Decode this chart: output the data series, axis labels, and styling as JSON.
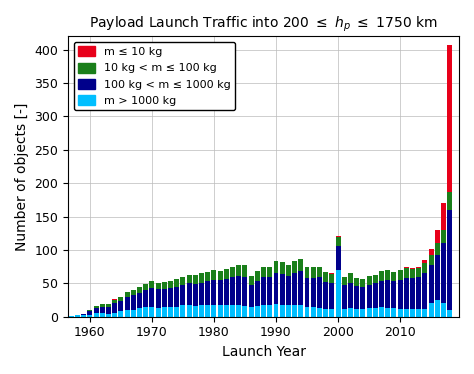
{
  "title": "Payload Launch Traffic into 200 $\\leq$ $h_p$ $\\leq$ 1750 km",
  "xlabel": "Launch Year",
  "ylabel": "Number of objects [-]",
  "years": [
    1957,
    1958,
    1959,
    1960,
    1961,
    1962,
    1963,
    1964,
    1965,
    1966,
    1967,
    1968,
    1969,
    1970,
    1971,
    1972,
    1973,
    1974,
    1975,
    1976,
    1977,
    1978,
    1979,
    1980,
    1981,
    1982,
    1983,
    1984,
    1985,
    1986,
    1987,
    1988,
    1989,
    1990,
    1991,
    1992,
    1993,
    1994,
    1995,
    1996,
    1997,
    1998,
    1999,
    2000,
    2001,
    2002,
    2003,
    2004,
    2005,
    2006,
    2007,
    2008,
    2009,
    2010,
    2011,
    2012,
    2013,
    2014,
    2015,
    2016,
    2017,
    2018
  ],
  "m_le_10": [
    0,
    0,
    0,
    0,
    0,
    0,
    0,
    1,
    0,
    0,
    0,
    0,
    0,
    0,
    0,
    0,
    0,
    0,
    0,
    0,
    0,
    0,
    0,
    0,
    0,
    0,
    0,
    0,
    0,
    0,
    0,
    0,
    0,
    0,
    0,
    0,
    0,
    0,
    0,
    0,
    0,
    0,
    1,
    1,
    0,
    0,
    0,
    0,
    0,
    0,
    0,
    0,
    0,
    0,
    1,
    1,
    2,
    5,
    10,
    20,
    40,
    220
  ],
  "m_10_100": [
    0,
    0,
    0,
    2,
    3,
    4,
    5,
    5,
    6,
    7,
    8,
    9,
    9,
    10,
    10,
    10,
    11,
    12,
    12,
    13,
    13,
    14,
    14,
    15,
    14,
    15,
    16,
    17,
    18,
    13,
    15,
    16,
    16,
    18,
    18,
    17,
    18,
    18,
    16,
    16,
    16,
    15,
    14,
    14,
    13,
    14,
    12,
    12,
    13,
    13,
    14,
    15,
    14,
    15,
    15,
    14,
    13,
    14,
    14,
    17,
    20,
    27
  ],
  "m_100_1000": [
    0,
    1,
    2,
    5,
    8,
    10,
    10,
    14,
    16,
    20,
    22,
    23,
    26,
    28,
    28,
    27,
    29,
    29,
    30,
    33,
    33,
    34,
    36,
    38,
    38,
    40,
    42,
    44,
    44,
    34,
    38,
    42,
    42,
    46,
    46,
    44,
    48,
    50,
    44,
    44,
    46,
    40,
    38,
    36,
    35,
    38,
    34,
    32,
    35,
    37,
    40,
    42,
    40,
    44,
    46,
    46,
    48,
    54,
    58,
    68,
    90,
    150
  ],
  "m_gt_1000": [
    1,
    2,
    2,
    3,
    5,
    5,
    4,
    6,
    8,
    10,
    10,
    13,
    14,
    15,
    13,
    15,
    14,
    15,
    17,
    17,
    16,
    17,
    17,
    17,
    17,
    17,
    17,
    17,
    16,
    14,
    16,
    17,
    17,
    19,
    18,
    17,
    17,
    18,
    14,
    14,
    13,
    12,
    12,
    70,
    12,
    13,
    12,
    12,
    13,
    13,
    14,
    13,
    13,
    11,
    12,
    12,
    12,
    12,
    20,
    25,
    20,
    10
  ],
  "colors": {
    "m_le_10": "#e8001a",
    "m_10_100": "#1a7f1a",
    "m_100_1000": "#00008b",
    "m_gt_1000": "#00bfff"
  },
  "legend_labels": [
    "m ≤ 10 kg",
    "10 kg < m ≤ 100 kg",
    "100 kg < m ≤ 1000 kg",
    "m > 1000 kg"
  ],
  "ylim": [
    0,
    420
  ],
  "xlim": [
    1956.5,
    2019.5
  ]
}
